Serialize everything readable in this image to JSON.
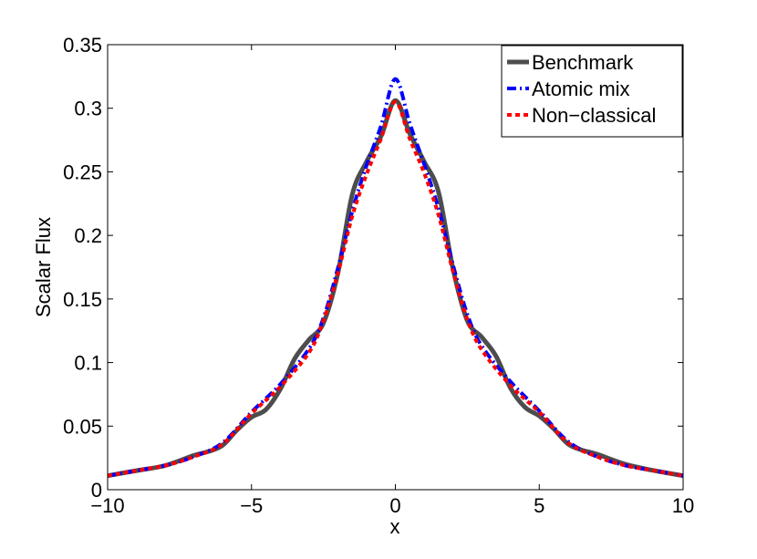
{
  "chart_data": {
    "type": "line",
    "title": "",
    "xlabel": "x",
    "ylabel": "Scalar Flux",
    "xlim": [
      -10,
      10
    ],
    "ylim": [
      0,
      0.35
    ],
    "xticks": [
      -10,
      -5,
      0,
      5,
      10
    ],
    "xtick_labels": [
      "−10",
      "−5",
      "0",
      "5",
      "10"
    ],
    "yticks": [
      0,
      0.05,
      0.1,
      0.15,
      0.2,
      0.25,
      0.3,
      0.35
    ],
    "ytick_labels": [
      "0",
      "0.05",
      "0.1",
      "0.15",
      "0.2",
      "0.25",
      "0.3",
      "0.35"
    ],
    "grid": false,
    "legend_position": "top-right",
    "series": [
      {
        "name": "Benchmark",
        "color": "#4d4d4d",
        "style": "solid",
        "x": [
          -10,
          -9,
          -8,
          -7,
          -6.5,
          -6,
          -5.5,
          -5,
          -4.5,
          -4,
          -3.5,
          -3,
          -2.5,
          -2,
          -1.5,
          -1,
          -0.5,
          0,
          0.5,
          1,
          1.5,
          2,
          2.5,
          3,
          3.5,
          4,
          4.5,
          5,
          5.5,
          6,
          6.5,
          7,
          8,
          9,
          10
        ],
        "y": [
          0.011,
          0.015,
          0.019,
          0.027,
          0.03,
          0.035,
          0.047,
          0.057,
          0.063,
          0.079,
          0.103,
          0.118,
          0.131,
          0.17,
          0.232,
          0.258,
          0.278,
          0.306,
          0.28,
          0.258,
          0.234,
          0.174,
          0.133,
          0.12,
          0.105,
          0.08,
          0.065,
          0.058,
          0.048,
          0.036,
          0.031,
          0.028,
          0.02,
          0.015,
          0.011
        ]
      },
      {
        "name": "Atomic mix",
        "color": "#0000ff",
        "style": "dash-dot",
        "x": [
          -10,
          -9,
          -8,
          -7,
          -6,
          -5,
          -4,
          -3,
          -2.5,
          -2,
          -1.5,
          -1,
          -0.5,
          0,
          0.5,
          1,
          1.5,
          2,
          2.5,
          3,
          4,
          5,
          6,
          7,
          8,
          9,
          10
        ],
        "y": [
          0.011,
          0.015,
          0.019,
          0.026,
          0.037,
          0.061,
          0.083,
          0.111,
          0.135,
          0.174,
          0.219,
          0.255,
          0.286,
          0.323,
          0.288,
          0.256,
          0.221,
          0.177,
          0.138,
          0.113,
          0.085,
          0.062,
          0.038,
          0.026,
          0.019,
          0.015,
          0.011
        ]
      },
      {
        "name": "Non−classical",
        "color": "#ff0000",
        "style": "dotted",
        "x": [
          -10,
          -9,
          -8,
          -7,
          -6,
          -5,
          -4,
          -3,
          -2.5,
          -2,
          -1.5,
          -1,
          -0.5,
          0,
          0.5,
          1,
          1.5,
          2,
          2.5,
          3,
          4,
          5,
          6,
          7,
          8,
          9,
          10
        ],
        "y": [
          0.011,
          0.015,
          0.019,
          0.026,
          0.036,
          0.06,
          0.081,
          0.108,
          0.133,
          0.17,
          0.215,
          0.248,
          0.276,
          0.305,
          0.276,
          0.249,
          0.216,
          0.172,
          0.134,
          0.11,
          0.082,
          0.061,
          0.037,
          0.026,
          0.019,
          0.015,
          0.011
        ]
      }
    ]
  }
}
